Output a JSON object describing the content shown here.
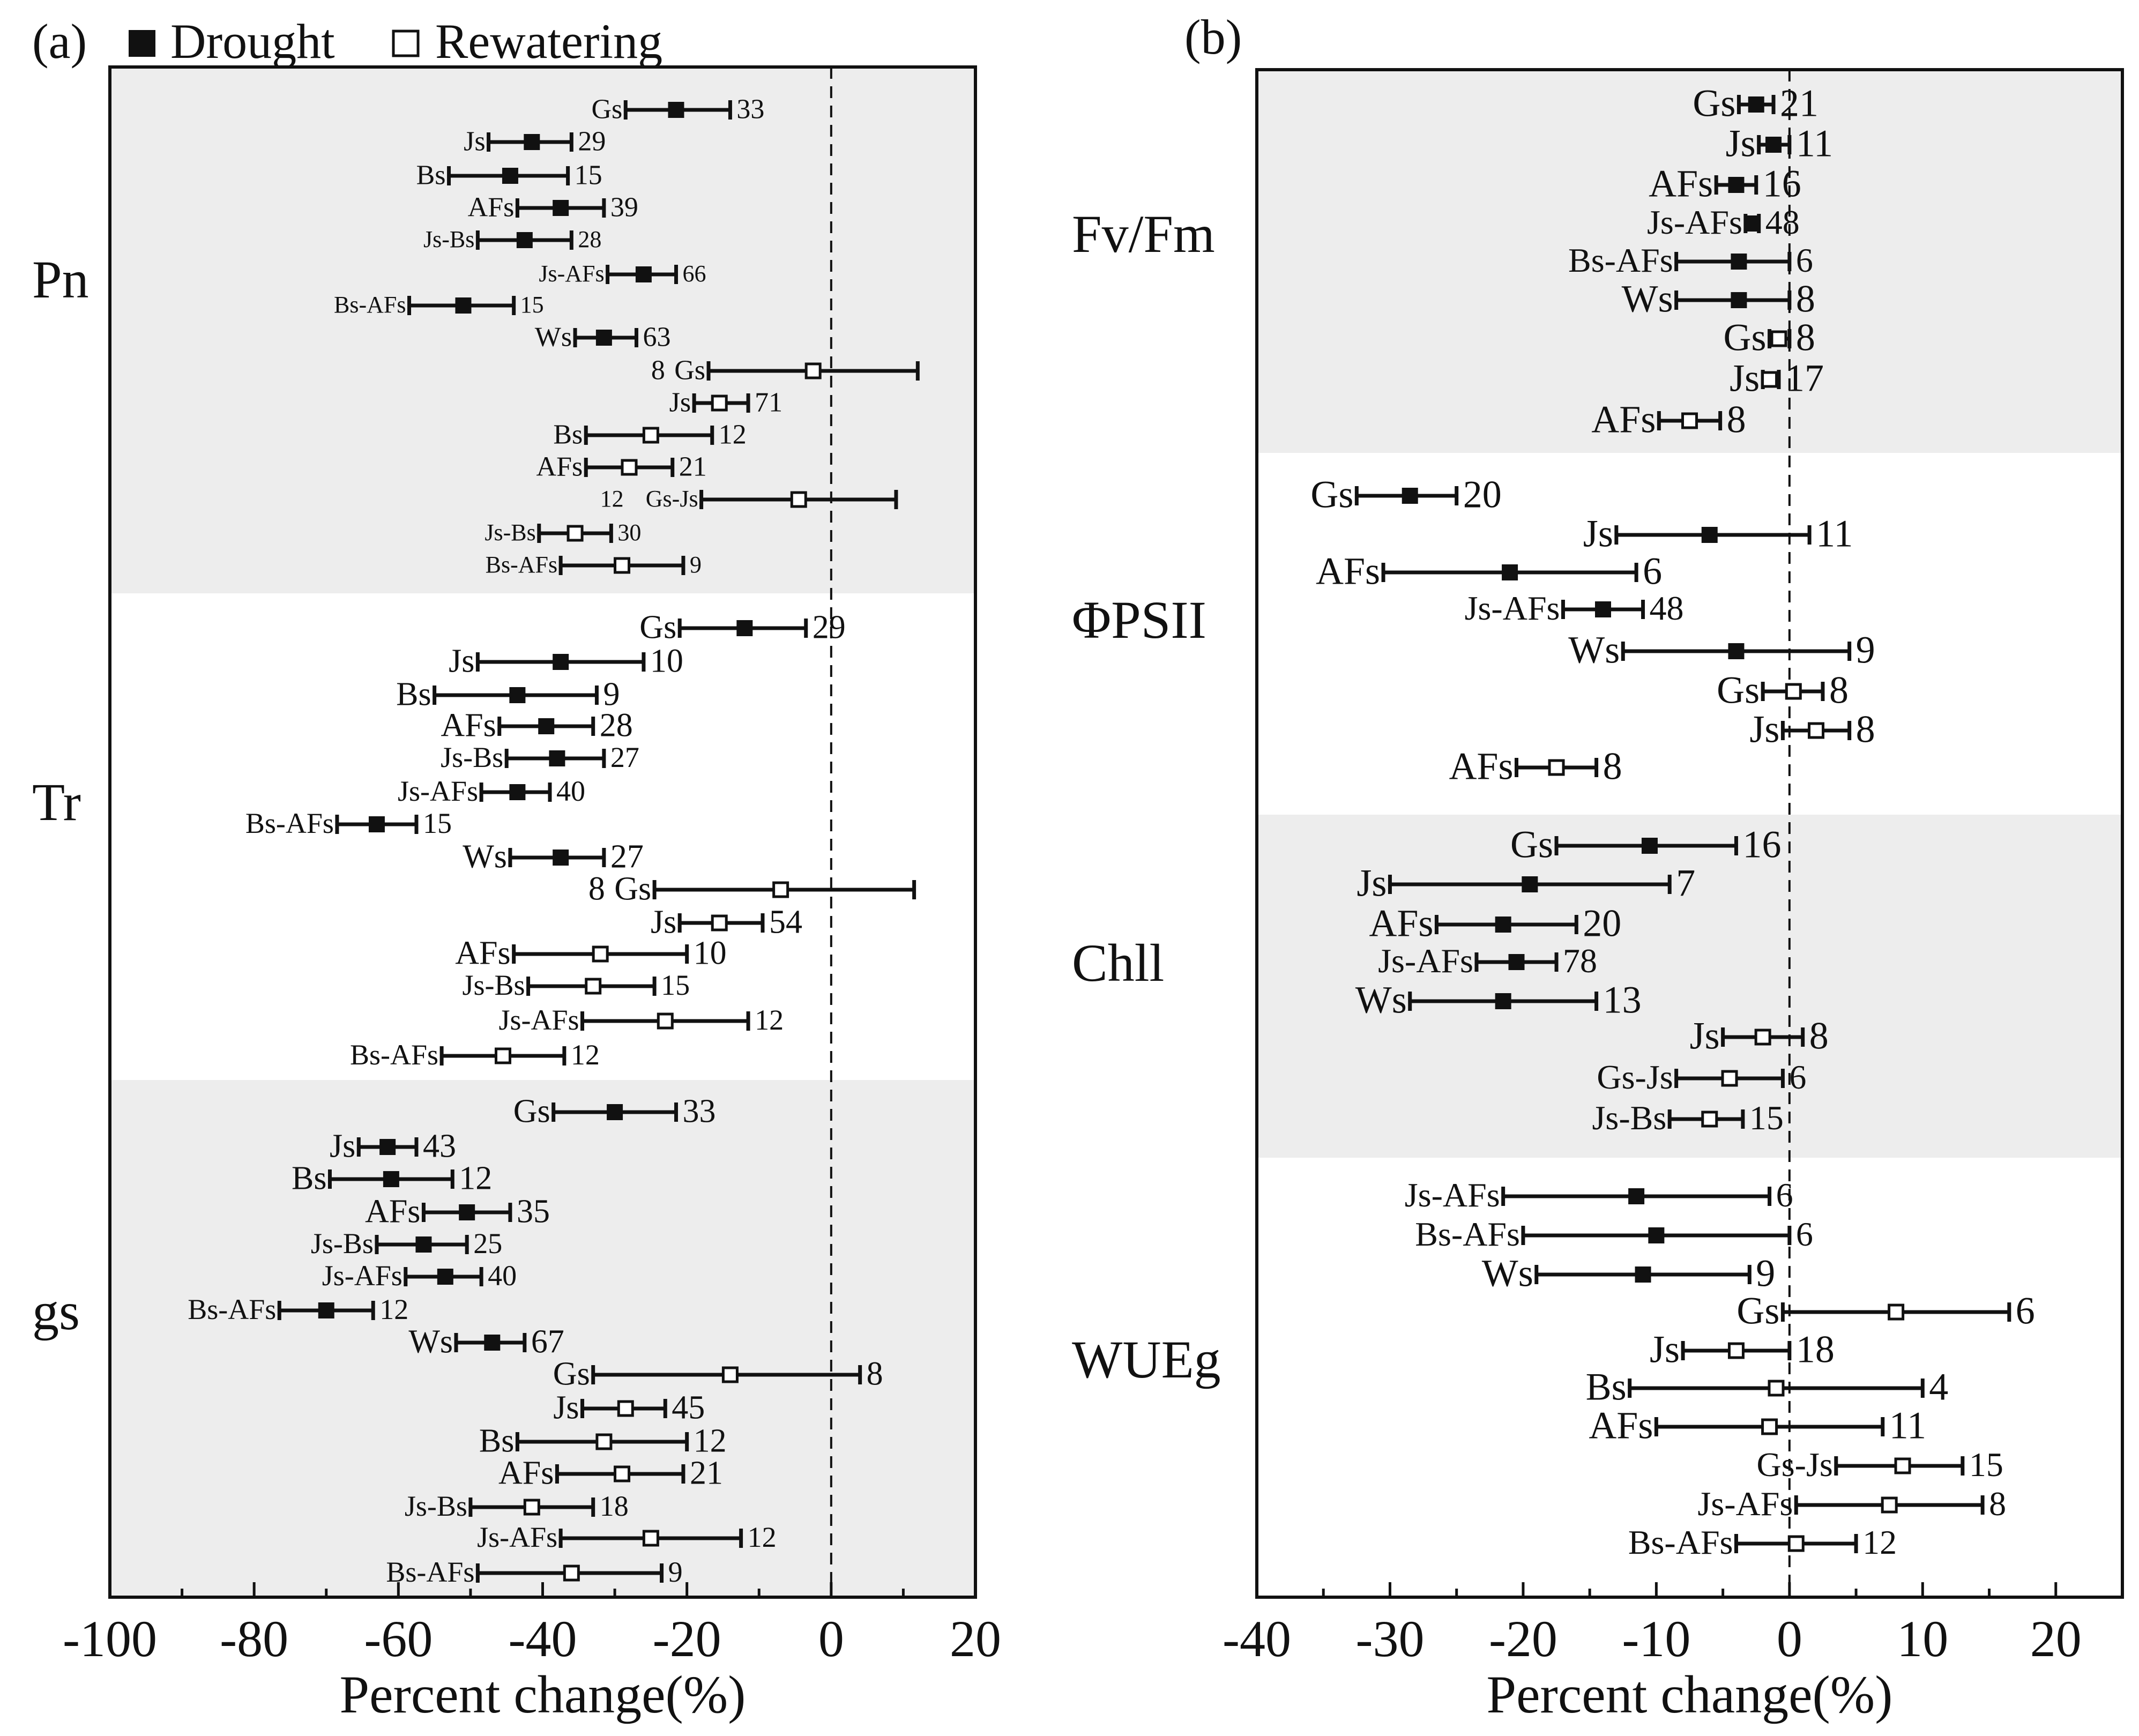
{
  "legend": {
    "panel_label": "(a)",
    "drought_label": "Drought",
    "rewatering_label": "Rewatering"
  },
  "colors": {
    "drought": "#111111",
    "rewatering": "#ffffff",
    "band": "#ededed",
    "axis": "#111111"
  },
  "chart_data": [
    {
      "type": "forest",
      "panel": "(a)",
      "xlabel": "Percent change(%)",
      "xlim": [
        -100,
        20
      ],
      "xticks": [
        -100,
        -80,
        -60,
        -40,
        -20,
        0,
        20
      ],
      "reference_line": 0,
      "groups": [
        {
          "name": "Pn",
          "shaded": true,
          "rows": [
            {
              "label": "Gs",
              "mean": -21.5,
              "lo": -28.5,
              "hi": -14,
              "n": "33",
              "cond": "Drought"
            },
            {
              "label": "Js",
              "mean": -41.5,
              "lo": -47.5,
              "hi": -36,
              "n": "29",
              "cond": "Drought"
            },
            {
              "label": "Bs",
              "mean": -44.5,
              "lo": -53,
              "hi": -36.5,
              "n": "15",
              "cond": "Drought"
            },
            {
              "label": "AFs",
              "mean": -37.5,
              "lo": -43.5,
              "hi": -31.5,
              "n": "39",
              "cond": "Drought"
            },
            {
              "label": "Js-Bs",
              "mean": -42.5,
              "lo": -49,
              "hi": -36,
              "n": "28",
              "cond": "Drought"
            },
            {
              "label": "Js-AFs",
              "mean": -26,
              "lo": -31,
              "hi": -21.5,
              "n": "66",
              "cond": "Drought"
            },
            {
              "label": "Bs-AFs",
              "mean": -51,
              "lo": -58.5,
              "hi": -44,
              "n": "15",
              "cond": "Drought"
            },
            {
              "label": "Ws",
              "mean": -31.5,
              "lo": -35.5,
              "hi": -27,
              "n": "63",
              "cond": "Drought"
            },
            {
              "label": "Gs",
              "mean": -2.5,
              "lo": -17,
              "hi": 12,
              "n": "8",
              "cond": "Rewatering"
            },
            {
              "label": "Js",
              "mean": -15.5,
              "lo": -19,
              "hi": -11.5,
              "n": "71",
              "cond": "Rewatering"
            },
            {
              "label": "Bs",
              "mean": -25,
              "lo": -34,
              "hi": -16.5,
              "n": "12",
              "cond": "Rewatering"
            },
            {
              "label": "AFs",
              "mean": -28,
              "lo": -34,
              "hi": -22,
              "n": "21",
              "cond": "Rewatering"
            },
            {
              "label": "Gs-Js",
              "mean": -4.5,
              "lo": -18,
              "hi": 9,
              "n": "12",
              "cond": "Rewatering"
            },
            {
              "label": "Js-Bs",
              "mean": -35.5,
              "lo": -40.5,
              "hi": -30.5,
              "n": "30",
              "cond": "Rewatering"
            },
            {
              "label": "Bs-AFs",
              "mean": -29,
              "lo": -37.5,
              "hi": -20.5,
              "n": "9",
              "cond": "Rewatering"
            }
          ]
        },
        {
          "name": "Tr",
          "shaded": false,
          "rows": [
            {
              "label": "Gs",
              "mean": -12,
              "lo": -21,
              "hi": -3.5,
              "n": "29",
              "cond": "Drought"
            },
            {
              "label": "Js",
              "mean": -37.5,
              "lo": -49,
              "hi": -26,
              "n": "10",
              "cond": "Drought"
            },
            {
              "label": "Bs",
              "mean": -43.5,
              "lo": -55,
              "hi": -32.5,
              "n": "9",
              "cond": "Drought"
            },
            {
              "label": "AFs",
              "mean": -39.5,
              "lo": -46,
              "hi": -33,
              "n": "28",
              "cond": "Drought"
            },
            {
              "label": "Js-Bs",
              "mean": -38,
              "lo": -45,
              "hi": -31.5,
              "n": "27",
              "cond": "Drought"
            },
            {
              "label": "Js-AFs",
              "mean": -43.5,
              "lo": -48.5,
              "hi": -39,
              "n": "40",
              "cond": "Drought"
            },
            {
              "label": "Bs-AFs",
              "mean": -63,
              "lo": -68.5,
              "hi": -57.5,
              "n": "15",
              "cond": "Drought"
            },
            {
              "label": "Ws",
              "mean": -37.5,
              "lo": -44.5,
              "hi": -31.5,
              "n": "27",
              "cond": "Drought"
            },
            {
              "label": "Gs",
              "mean": -7,
              "lo": -24.5,
              "hi": 11.5,
              "n": "8",
              "cond": "Rewatering"
            },
            {
              "label": "Js",
              "mean": -15.5,
              "lo": -21,
              "hi": -9.5,
              "n": "54",
              "cond": "Rewatering"
            },
            {
              "label": "AFs",
              "mean": -32,
              "lo": -44,
              "hi": -20,
              "n": "10",
              "cond": "Rewatering"
            },
            {
              "label": "Js-Bs",
              "mean": -33,
              "lo": -42,
              "hi": -24.5,
              "n": "15",
              "cond": "Rewatering"
            },
            {
              "label": "Js-AFs",
              "mean": -23,
              "lo": -34.5,
              "hi": -11.5,
              "n": "12",
              "cond": "Rewatering"
            },
            {
              "label": "Bs-AFs",
              "mean": -45.5,
              "lo": -54,
              "hi": -37,
              "n": "12",
              "cond": "Rewatering"
            }
          ]
        },
        {
          "name": "gs",
          "shaded": true,
          "rows": [
            {
              "label": "Gs",
              "mean": -30,
              "lo": -38.5,
              "hi": -21.5,
              "n": "33",
              "cond": "Drought"
            },
            {
              "label": "Js",
              "mean": -61.5,
              "lo": -65.5,
              "hi": -57.5,
              "n": "43",
              "cond": "Drought"
            },
            {
              "label": "Bs",
              "mean": -61,
              "lo": -69.5,
              "hi": -52.5,
              "n": "12",
              "cond": "Drought"
            },
            {
              "label": "AFs",
              "mean": -50.5,
              "lo": -56.5,
              "hi": -44.5,
              "n": "35",
              "cond": "Drought"
            },
            {
              "label": "Js-Bs",
              "mean": -56.5,
              "lo": -63,
              "hi": -50.5,
              "n": "25",
              "cond": "Drought"
            },
            {
              "label": "Js-AFs",
              "mean": -53.5,
              "lo": -59,
              "hi": -48.5,
              "n": "40",
              "cond": "Drought"
            },
            {
              "label": "Bs-AFs",
              "mean": -70,
              "lo": -76.5,
              "hi": -63.5,
              "n": "12",
              "cond": "Drought"
            },
            {
              "label": "Ws",
              "mean": -47,
              "lo": -52,
              "hi": -42.5,
              "n": "67",
              "cond": "Drought"
            },
            {
              "label": "Gs",
              "mean": -14,
              "lo": -33,
              "hi": 4,
              "n": "8",
              "cond": "Rewatering"
            },
            {
              "label": "Js",
              "mean": -28.5,
              "lo": -34.5,
              "hi": -23,
              "n": "45",
              "cond": "Rewatering"
            },
            {
              "label": "Bs",
              "mean": -31.5,
              "lo": -43.5,
              "hi": -20,
              "n": "12",
              "cond": "Rewatering"
            },
            {
              "label": "AFs",
              "mean": -29,
              "lo": -38,
              "hi": -20.5,
              "n": "21",
              "cond": "Rewatering"
            },
            {
              "label": "Js-Bs",
              "mean": -41.5,
              "lo": -50,
              "hi": -33,
              "n": "18",
              "cond": "Rewatering"
            },
            {
              "label": "Js-AFs",
              "mean": -25,
              "lo": -37.5,
              "hi": -12.5,
              "n": "12",
              "cond": "Rewatering"
            },
            {
              "label": "Bs-AFs",
              "mean": -36,
              "lo": -49,
              "hi": -23.5,
              "n": "9",
              "cond": "Rewatering"
            }
          ]
        }
      ]
    },
    {
      "type": "forest",
      "panel": "(b)",
      "xlabel": "Percent change(%)",
      "xlim": [
        -40,
        25
      ],
      "xticks": [
        -40,
        -30,
        -20,
        -10,
        0,
        10,
        20
      ],
      "reference_line": 0,
      "groups": [
        {
          "name": "Fv/Fm",
          "shaded": true,
          "rows": [
            {
              "label": "Gs",
              "mean": -2.5,
              "lo": -3.8,
              "hi": -1.2,
              "n": "21",
              "cond": "Drought"
            },
            {
              "label": "Js",
              "mean": -1.2,
              "lo": -2.3,
              "hi": 0,
              "n": "11",
              "cond": "Drought"
            },
            {
              "label": "AFs",
              "mean": -4,
              "lo": -5.5,
              "hi": -2.5,
              "n": "16",
              "cond": "Drought"
            },
            {
              "label": "Js-AFs",
              "mean": -2.8,
              "lo": -3.3,
              "hi": -2.3,
              "n": "48",
              "cond": "Drought"
            },
            {
              "label": "Bs-AFs",
              "mean": -3.8,
              "lo": -8.5,
              "hi": 0,
              "n": "6",
              "cond": "Drought"
            },
            {
              "label": "Ws",
              "mean": -3.8,
              "lo": -8.5,
              "hi": 0,
              "n": "8",
              "cond": "Drought"
            },
            {
              "label": "Gs",
              "mean": -0.8,
              "lo": -1.5,
              "hi": 0,
              "n": "8",
              "cond": "Rewatering"
            },
            {
              "label": "Js",
              "mean": -1.5,
              "lo": -2,
              "hi": -0.8,
              "n": "17",
              "cond": "Rewatering"
            },
            {
              "label": "AFs",
              "mean": -7.5,
              "lo": -9.8,
              "hi": -5.2,
              "n": "8",
              "cond": "Rewatering"
            }
          ]
        },
        {
          "name": "ΦPSII",
          "shaded": false,
          "rows": [
            {
              "label": "Gs",
              "mean": -28.5,
              "lo": -32.5,
              "hi": -25,
              "n": "20",
              "cond": "Drought"
            },
            {
              "label": "Js",
              "mean": -6,
              "lo": -13,
              "hi": 1.5,
              "n": "11",
              "cond": "Drought"
            },
            {
              "label": "AFs",
              "mean": -21,
              "lo": -30.5,
              "hi": -11.5,
              "n": "6",
              "cond": "Drought"
            },
            {
              "label": "Js-AFs",
              "mean": -14,
              "lo": -17,
              "hi": -11,
              "n": "48",
              "cond": "Drought"
            },
            {
              "label": "Ws",
              "mean": -4,
              "lo": -12.5,
              "hi": 4.5,
              "n": "9",
              "cond": "Drought"
            },
            {
              "label": "Gs",
              "mean": 0.3,
              "lo": -2,
              "hi": 2.5,
              "n": "8",
              "cond": "Rewatering"
            },
            {
              "label": "Js",
              "mean": 2,
              "lo": -0.5,
              "hi": 4.5,
              "n": "8",
              "cond": "Rewatering"
            },
            {
              "label": "AFs",
              "mean": -17.5,
              "lo": -20.5,
              "hi": -14.5,
              "n": "8",
              "cond": "Rewatering"
            }
          ]
        },
        {
          "name": "Chll",
          "shaded": true,
          "rows": [
            {
              "label": "Gs",
              "mean": -10.5,
              "lo": -17.5,
              "hi": -4,
              "n": "16",
              "cond": "Drought"
            },
            {
              "label": "Js",
              "mean": -19.5,
              "lo": -30,
              "hi": -9,
              "n": "7",
              "cond": "Drought"
            },
            {
              "label": "AFs",
              "mean": -21.5,
              "lo": -26.5,
              "hi": -16,
              "n": "20",
              "cond": "Drought"
            },
            {
              "label": "Js-AFs",
              "mean": -20.5,
              "lo": -23.5,
              "hi": -17.5,
              "n": "78",
              "cond": "Drought"
            },
            {
              "label": "Ws",
              "mean": -21.5,
              "lo": -28.5,
              "hi": -14.5,
              "n": "13",
              "cond": "Drought"
            },
            {
              "label": "Js",
              "mean": -2,
              "lo": -5,
              "hi": 1,
              "n": "8",
              "cond": "Rewatering"
            },
            {
              "label": "Gs-Js",
              "mean": -4.5,
              "lo": -8.5,
              "hi": -0.5,
              "n": "6",
              "cond": "Rewatering"
            },
            {
              "label": "Js-Bs",
              "mean": -6,
              "lo": -9,
              "hi": -3.5,
              "n": "15",
              "cond": "Rewatering"
            }
          ]
        },
        {
          "name": "WUEg",
          "shaded": false,
          "rows": [
            {
              "label": "Js-AFs",
              "mean": -11.5,
              "lo": -21.5,
              "hi": -1.5,
              "n": "6",
              "cond": "Drought"
            },
            {
              "label": "Bs-AFs",
              "mean": -10,
              "lo": -20,
              "hi": 0,
              "n": "6",
              "cond": "Drought"
            },
            {
              "label": "Ws",
              "mean": -11,
              "lo": -19,
              "hi": -3,
              "n": "9",
              "cond": "Drought"
            },
            {
              "label": "Gs",
              "mean": 8,
              "lo": -0.5,
              "hi": 16.5,
              "n": "6",
              "cond": "Rewatering"
            },
            {
              "label": "Js",
              "mean": -4,
              "lo": -8,
              "hi": 0,
              "n": "18",
              "cond": "Rewatering"
            },
            {
              "label": "Bs",
              "mean": -1,
              "lo": -12,
              "hi": 10,
              "n": "4",
              "cond": "Rewatering"
            },
            {
              "label": "AFs",
              "mean": -1.5,
              "lo": -10,
              "hi": 7,
              "n": "11",
              "cond": "Rewatering"
            },
            {
              "label": "Gs-Js",
              "mean": 8.5,
              "lo": 3.5,
              "hi": 13,
              "n": "15",
              "cond": "Rewatering"
            },
            {
              "label": "Js-AFs",
              "mean": 7.5,
              "lo": 0.5,
              "hi": 14.5,
              "n": "8",
              "cond": "Rewatering"
            },
            {
              "label": "Bs-AFs",
              "mean": 0.5,
              "lo": -4,
              "hi": 5,
              "n": "12",
              "cond": "Rewatering"
            }
          ]
        }
      ]
    }
  ]
}
